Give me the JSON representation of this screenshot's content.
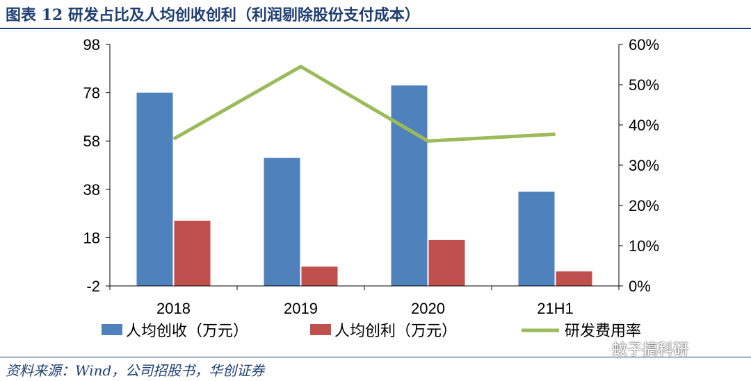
{
  "header": {
    "title": "图表 12   研发占比及人均创收创利（利润剔除股份支付成本）"
  },
  "source": "资料来源：Wind，公司招股书，华创证券",
  "watermark": "蚊子搞科研",
  "colors": {
    "title": "#1f3f73",
    "revenue_bar": "#4f81bd",
    "profit_bar": "#c0504d",
    "rd_line": "#9bbb59",
    "axis": "#000000"
  },
  "chart_data": {
    "type": "bar",
    "categories": [
      "2018",
      "2019",
      "2020",
      "21H1"
    ],
    "series": [
      {
        "name": "人均创收（万元）",
        "type": "bar",
        "axis": "left",
        "values": [
          78,
          51,
          81,
          37
        ]
      },
      {
        "name": "人均创利（万元）",
        "type": "bar",
        "axis": "left",
        "values": [
          25,
          6,
          17,
          4
        ]
      },
      {
        "name": "研发费用率",
        "type": "line",
        "axis": "right",
        "values": [
          36.5,
          54.5,
          36,
          37.7
        ]
      }
    ],
    "y_left": {
      "ticks": [
        "98",
        "78",
        "58",
        "38",
        "18",
        "-2"
      ],
      "min": -2,
      "max": 98
    },
    "y_right": {
      "ticks": [
        "60%",
        "50%",
        "40%",
        "30%",
        "20%",
        "10%",
        "0%"
      ],
      "min": 0,
      "max": 60
    },
    "grid": false,
    "legend_position": "bottom"
  }
}
